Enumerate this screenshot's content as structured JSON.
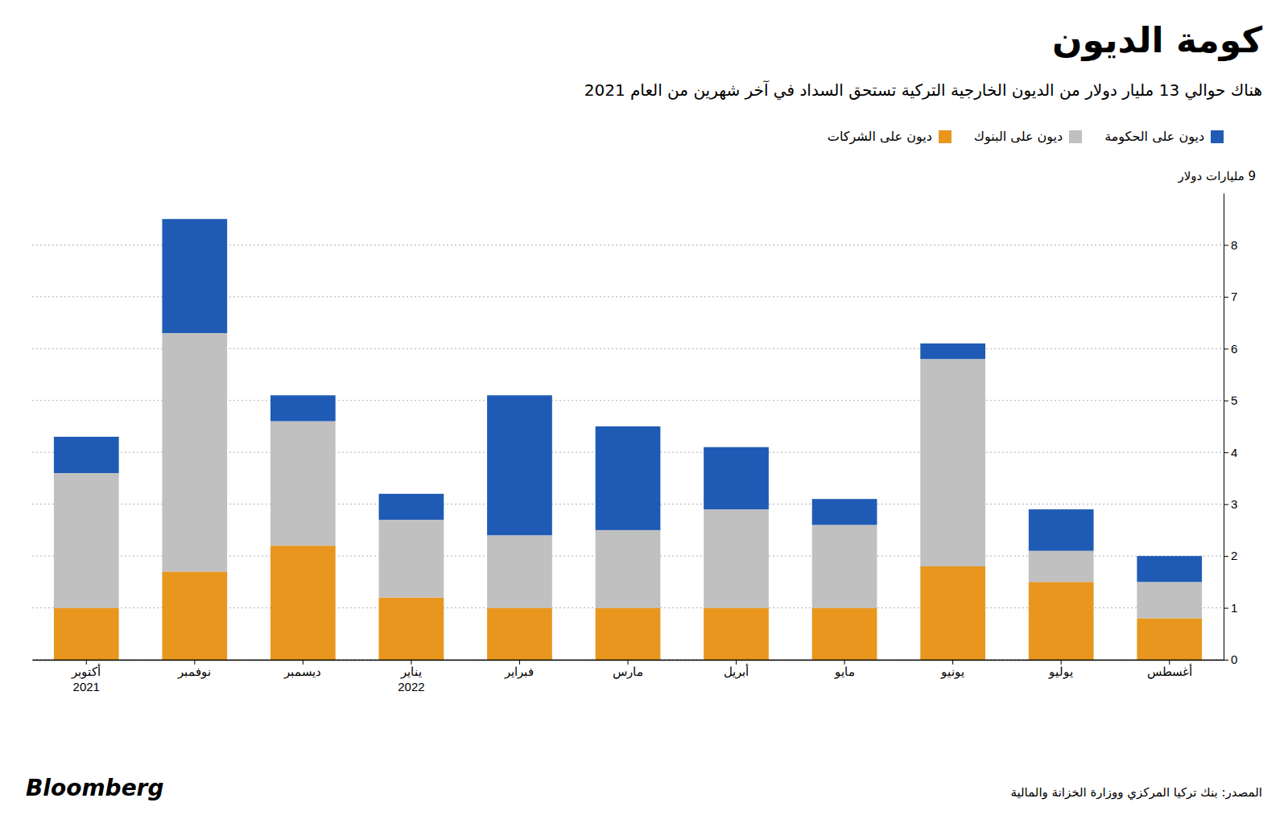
{
  "chart_data": {
    "type": "bar",
    "stacked": true,
    "title": "كومة الديون",
    "subtitle": "هناك حوالي 13 مليار دولار من الديون الخارجية التركية تستحق السداد في آخر شهرين من العام 2021",
    "ylabel": "9 مليارات دولار",
    "categories": [
      "أكتوبر\n2021",
      "نوفمبر",
      "ديسمبر",
      "يناير\n2022",
      "فبراير",
      "مارس",
      "أبريل",
      "مايو",
      "يونيو",
      "يوليو",
      "أغسطس"
    ],
    "series": [
      {
        "name": "ديون على الشركات",
        "color": "#E8961E",
        "values": [
          1.0,
          1.7,
          2.2,
          1.2,
          1.0,
          1.0,
          1.0,
          1.0,
          1.8,
          1.5,
          0.8
        ]
      },
      {
        "name": "ديون على البنوك",
        "color": "#C0C0C0",
        "values": [
          2.6,
          4.6,
          2.4,
          1.5,
          1.4,
          1.5,
          1.9,
          1.6,
          4.0,
          0.6,
          0.7
        ]
      },
      {
        "name": "ديون على الحكومة",
        "color": "#1F5BB5",
        "values": [
          0.7,
          2.2,
          0.5,
          0.5,
          2.7,
          2.0,
          1.2,
          0.5,
          0.3,
          0.8,
          0.5
        ]
      }
    ],
    "ylim": [
      0,
      9
    ],
    "yticks": [
      0,
      1,
      2,
      3,
      4,
      5,
      6,
      7,
      8
    ],
    "grid": true,
    "legend": "top-right",
    "annotations": [
      "المصدر: بنك تركيا المركزي ووزارة الخزانة والمالية",
      "Bloomberg"
    ]
  }
}
